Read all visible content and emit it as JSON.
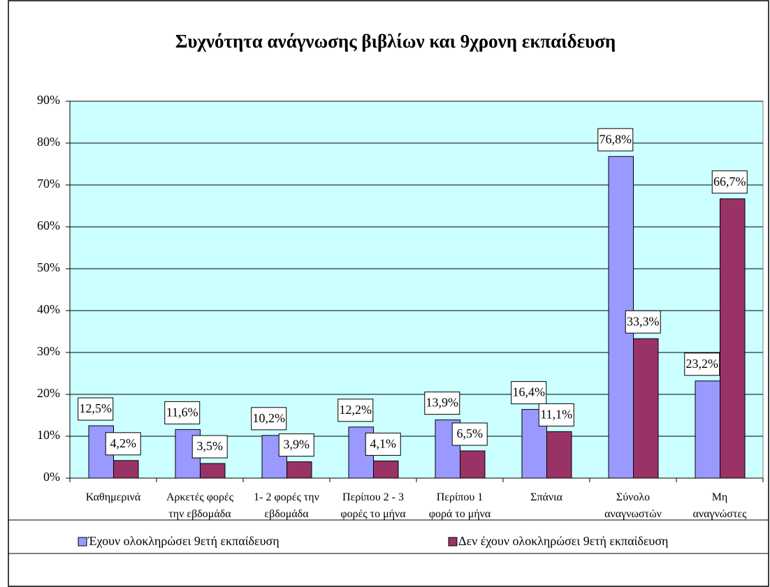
{
  "chart_data": {
    "type": "bar",
    "title": "Συχνότητα ανάγνωσης βιβλίων και 9χρονη εκπαίδευση",
    "categories": [
      "Καθημερινά",
      "Αρκετές φορές\nτην εβδομάδα",
      "1- 2 φορές την\nεβδομάδα",
      "Περίπου 2 - 3\nφορές το μήνα",
      "Περίπου 1\nφορά το μήνα",
      "Σπάνια",
      "Σύνολο\nαναγνωστών",
      "Μη\nαναγνώστες"
    ],
    "series": [
      {
        "name": "Έχουν ολοκληρώσει 9ετή εκπαίδευση",
        "color": "#9999ff",
        "values": [
          12.5,
          11.6,
          10.2,
          12.2,
          13.9,
          16.4,
          76.8,
          23.2
        ],
        "value_labels": [
          "12,5%",
          "11,6%",
          "10,2%",
          "12,2%",
          "13,9%",
          "16,4%",
          "76,8%",
          "23,2%"
        ]
      },
      {
        "name": "Δεν έχουν ολοκληρώσει 9ετή εκπαίδευση",
        "color": "#993366",
        "values": [
          4.2,
          3.5,
          3.9,
          4.1,
          6.5,
          11.1,
          33.3,
          66.7
        ],
        "value_labels": [
          "4,2%",
          "3,5%",
          "3,9%",
          "4,1%",
          "6,5%",
          "11,1%",
          "33,3%",
          "66,7%"
        ]
      }
    ],
    "ylim": [
      0,
      90
    ],
    "yticks": [
      {
        "value": 0,
        "label": "0%"
      },
      {
        "value": 10,
        "label": "10%"
      },
      {
        "value": 20,
        "label": "20%"
      },
      {
        "value": 30,
        "label": "30%"
      },
      {
        "value": 40,
        "label": "40%"
      },
      {
        "value": 50,
        "label": "50%"
      },
      {
        "value": 60,
        "label": "60%"
      },
      {
        "value": 70,
        "label": "70%"
      },
      {
        "value": 80,
        "label": "80%"
      },
      {
        "value": 90,
        "label": "90%"
      }
    ],
    "grid": true,
    "plot_background": "#ccffff",
    "legend": "bottom"
  }
}
